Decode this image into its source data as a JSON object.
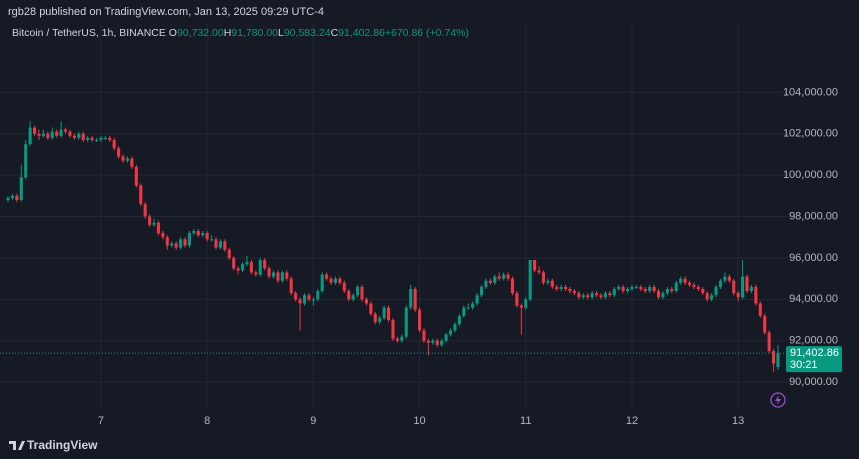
{
  "header": {
    "publisher": "rgb28 published on TradingView.com, Jan 13, 2025 09:29 UTC-4"
  },
  "footer": {
    "logo": "TradingView"
  },
  "chart_data": {
    "type": "candlestick",
    "title": "Bitcoin / TetherUS, 1h, BINANCE",
    "legend_values": [
      {
        "label": "O",
        "value": "90,732.00"
      },
      {
        "label": "H",
        "value": "91,780.00"
      },
      {
        "label": "L",
        "value": "90,583.24"
      },
      {
        "label": "C",
        "value": "91,402.86"
      }
    ],
    "change": "+670.86 (+0.74%)",
    "last_price_label": "91,402.86",
    "countdown": "30:21",
    "up_color": "#089981",
    "down_color": "#f23645",
    "grid": true,
    "ylim": [
      88750,
      107400
    ],
    "yticks": [
      {
        "value": 90000,
        "label": "90,000.00"
      },
      {
        "value": 92000,
        "label": "92,000.00"
      },
      {
        "value": 94000,
        "label": "94,000.00"
      },
      {
        "value": 96000,
        "label": "96,000.00"
      },
      {
        "value": 98000,
        "label": "98,000.00"
      },
      {
        "value": 100000,
        "label": "100,000.00"
      },
      {
        "value": 102000,
        "label": "102,000.00"
      },
      {
        "value": 104000,
        "label": "104,000.00"
      }
    ],
    "xlim": [
      0,
      174
    ],
    "xticks": [
      {
        "value": 21,
        "label": "7"
      },
      {
        "value": 45,
        "label": "8"
      },
      {
        "value": 69,
        "label": "9"
      },
      {
        "value": 93,
        "label": "10"
      },
      {
        "value": 117,
        "label": "11"
      },
      {
        "value": 141,
        "label": "12"
      },
      {
        "value": 165,
        "label": "13"
      }
    ],
    "ohlc": [
      [
        98800,
        99000,
        98700,
        98900
      ],
      [
        98900,
        99100,
        98800,
        99000
      ],
      [
        99000,
        99100,
        98700,
        98800
      ],
      [
        98800,
        100500,
        98700,
        99900
      ],
      [
        99900,
        101700,
        99800,
        101500
      ],
      [
        101500,
        102600,
        101400,
        102300
      ],
      [
        102300,
        102400,
        101900,
        102000
      ],
      [
        102000,
        102200,
        101700,
        101900
      ],
      [
        101900,
        102200,
        101800,
        102000
      ],
      [
        102000,
        102100,
        101700,
        101800
      ],
      [
        101800,
        102300,
        101700,
        102100
      ],
      [
        102100,
        102200,
        101800,
        101900
      ],
      [
        101900,
        102600,
        101800,
        102200
      ],
      [
        102200,
        102300,
        102000,
        102100
      ],
      [
        102100,
        102200,
        101800,
        101900
      ],
      [
        101900,
        102000,
        101700,
        101800
      ],
      [
        101800,
        102100,
        101700,
        102000
      ],
      [
        102000,
        102100,
        101600,
        101700
      ],
      [
        101700,
        101900,
        101600,
        101800
      ],
      [
        101800,
        101900,
        101600,
        101700
      ],
      [
        101700,
        101800,
        101600,
        101700
      ],
      [
        101700,
        101900,
        101600,
        101800
      ],
      [
        101800,
        101900,
        101700,
        101800
      ],
      [
        101800,
        101900,
        101600,
        101700
      ],
      [
        101700,
        101800,
        101200,
        101300
      ],
      [
        101300,
        101400,
        100800,
        100900
      ],
      [
        100900,
        101000,
        100600,
        100700
      ],
      [
        100700,
        100900,
        100600,
        100800
      ],
      [
        100800,
        100900,
        100300,
        100400
      ],
      [
        100400,
        100500,
        99400,
        99500
      ],
      [
        99500,
        99600,
        98500,
        98600
      ],
      [
        98600,
        98700,
        97900,
        98000
      ],
      [
        98000,
        98100,
        97500,
        97600
      ],
      [
        97600,
        97900,
        97500,
        97700
      ],
      [
        97700,
        97800,
        97100,
        97200
      ],
      [
        97200,
        97300,
        96900,
        97000
      ],
      [
        97000,
        97100,
        96400,
        96600
      ],
      [
        96600,
        96800,
        96500,
        96700
      ],
      [
        96700,
        96800,
        96400,
        96500
      ],
      [
        96500,
        97000,
        96400,
        96900
      ],
      [
        96900,
        97000,
        96500,
        96600
      ],
      [
        96600,
        97300,
        96500,
        97200
      ],
      [
        97200,
        97400,
        97100,
        97300
      ],
      [
        97300,
        97400,
        97000,
        97100
      ],
      [
        97100,
        97300,
        97000,
        97200
      ],
      [
        97200,
        97300,
        96800,
        96900
      ],
      [
        96900,
        97100,
        96800,
        96900
      ],
      [
        96900,
        97000,
        96400,
        96500
      ],
      [
        96500,
        96900,
        96400,
        96800
      ],
      [
        96800,
        96900,
        96300,
        96400
      ],
      [
        96400,
        96500,
        95900,
        96000
      ],
      [
        96000,
        96100,
        95400,
        95500
      ],
      [
        95500,
        95600,
        95200,
        95400
      ],
      [
        95400,
        95800,
        95300,
        95700
      ],
      [
        95700,
        96100,
        95600,
        95800
      ],
      [
        95800,
        95900,
        95200,
        95300
      ],
      [
        95300,
        95400,
        95100,
        95200
      ],
      [
        95200,
        96000,
        95100,
        95900
      ],
      [
        95900,
        96000,
        95400,
        95500
      ],
      [
        95500,
        95600,
        95000,
        95100
      ],
      [
        95100,
        95400,
        95000,
        95300
      ],
      [
        95300,
        95400,
        94800,
        94900
      ],
      [
        94900,
        95400,
        94800,
        95300
      ],
      [
        95300,
        95400,
        94900,
        95000
      ],
      [
        95000,
        95100,
        94200,
        94300
      ],
      [
        94300,
        94400,
        93900,
        94000
      ],
      [
        94000,
        94100,
        92500,
        93800
      ],
      [
        93800,
        94300,
        93700,
        94200
      ],
      [
        94200,
        94300,
        93900,
        94000
      ],
      [
        94000,
        94100,
        93700,
        94000
      ],
      [
        94000,
        94500,
        93900,
        94400
      ],
      [
        94400,
        95300,
        94300,
        95200
      ],
      [
        95200,
        95300,
        94900,
        95000
      ],
      [
        95000,
        95100,
        94700,
        94800
      ],
      [
        94800,
        95100,
        94700,
        95000
      ],
      [
        95000,
        95100,
        94700,
        94800
      ],
      [
        94800,
        94900,
        94300,
        94400
      ],
      [
        94400,
        94500,
        93900,
        94000
      ],
      [
        94000,
        94300,
        93900,
        94200
      ],
      [
        94200,
        94700,
        94100,
        94600
      ],
      [
        94600,
        94700,
        93900,
        94000
      ],
      [
        94000,
        94100,
        93700,
        93800
      ],
      [
        93800,
        93900,
        93200,
        93300
      ],
      [
        93300,
        93400,
        92800,
        92900
      ],
      [
        92900,
        93200,
        92800,
        93100
      ],
      [
        93100,
        93700,
        93000,
        93600
      ],
      [
        93600,
        93700,
        92900,
        93000
      ],
      [
        93000,
        93100,
        92000,
        92100
      ],
      [
        92100,
        92200,
        91900,
        92000
      ],
      [
        92000,
        92300,
        91900,
        92200
      ],
      [
        92200,
        93700,
        92100,
        93600
      ],
      [
        93600,
        94700,
        93500,
        94500
      ],
      [
        94500,
        94600,
        93400,
        93500
      ],
      [
        93500,
        93600,
        92400,
        92500
      ],
      [
        92500,
        92600,
        91900,
        92000
      ],
      [
        92000,
        92100,
        91300,
        91900
      ],
      [
        91900,
        92100,
        91800,
        92000
      ],
      [
        92000,
        92100,
        91700,
        91800
      ],
      [
        91800,
        92100,
        91700,
        92000
      ],
      [
        92000,
        92400,
        91900,
        92300
      ],
      [
        92300,
        92600,
        92200,
        92500
      ],
      [
        92500,
        92900,
        92400,
        92800
      ],
      [
        92800,
        93300,
        92700,
        93200
      ],
      [
        93200,
        93700,
        93100,
        93600
      ],
      [
        93600,
        93800,
        93500,
        93600
      ],
      [
        93600,
        93900,
        93500,
        93800
      ],
      [
        93800,
        94300,
        93700,
        94200
      ],
      [
        94200,
        94700,
        94100,
        94600
      ],
      [
        94600,
        95000,
        94500,
        94900
      ],
      [
        94900,
        95000,
        94700,
        94800
      ],
      [
        94800,
        95200,
        94700,
        95100
      ],
      [
        95100,
        95300,
        94900,
        95000
      ],
      [
        95000,
        95300,
        94900,
        95200
      ],
      [
        95200,
        95300,
        94900,
        95000
      ],
      [
        95000,
        95100,
        94200,
        94300
      ],
      [
        94300,
        94400,
        93600,
        93700
      ],
      [
        93700,
        93800,
        92300,
        93600
      ],
      [
        93600,
        94100,
        93500,
        94000
      ],
      [
        94000,
        95900,
        93900,
        95900
      ],
      [
        95900,
        95900,
        95300,
        95400
      ],
      [
        95400,
        95600,
        95200,
        95300
      ],
      [
        95300,
        95400,
        94700,
        94800
      ],
      [
        94800,
        95000,
        94700,
        94900
      ],
      [
        94900,
        95000,
        94500,
        94600
      ],
      [
        94600,
        94700,
        94400,
        94500
      ],
      [
        94500,
        94700,
        94400,
        94600
      ],
      [
        94600,
        94700,
        94400,
        94500
      ],
      [
        94500,
        94600,
        94300,
        94400
      ],
      [
        94400,
        94500,
        94200,
        94300
      ],
      [
        94300,
        94400,
        94000,
        94100
      ],
      [
        94100,
        94300,
        94000,
        94200
      ],
      [
        94200,
        94300,
        94000,
        94100
      ],
      [
        94100,
        94400,
        94000,
        94300
      ],
      [
        94300,
        94400,
        94100,
        94200
      ],
      [
        94200,
        94300,
        94000,
        94100
      ],
      [
        94100,
        94400,
        94000,
        94300
      ],
      [
        94300,
        94400,
        94100,
        94200
      ],
      [
        94200,
        94600,
        94100,
        94500
      ],
      [
        94500,
        94700,
        94400,
        94600
      ],
      [
        94600,
        94700,
        94300,
        94400
      ],
      [
        94400,
        94600,
        94300,
        94500
      ],
      [
        94500,
        94700,
        94400,
        94600
      ],
      [
        94600,
        94700,
        94500,
        94600
      ],
      [
        94600,
        94700,
        94400,
        94500
      ],
      [
        94500,
        94600,
        94300,
        94400
      ],
      [
        94400,
        94700,
        94300,
        94600
      ],
      [
        94600,
        94700,
        94300,
        94400
      ],
      [
        94400,
        94500,
        94000,
        94100
      ],
      [
        94100,
        94400,
        94000,
        94300
      ],
      [
        94300,
        94600,
        94200,
        94500
      ],
      [
        94500,
        94600,
        94300,
        94400
      ],
      [
        94400,
        94900,
        94300,
        94800
      ],
      [
        94800,
        95100,
        94700,
        95000
      ],
      [
        95000,
        95100,
        94700,
        94800
      ],
      [
        94800,
        94900,
        94600,
        94700
      ],
      [
        94700,
        94800,
        94500,
        94600
      ],
      [
        94600,
        94700,
        94400,
        94500
      ],
      [
        94500,
        94600,
        94200,
        94300
      ],
      [
        94300,
        94400,
        93900,
        94000
      ],
      [
        94000,
        94300,
        93900,
        94200
      ],
      [
        94200,
        94700,
        94100,
        94600
      ],
      [
        94600,
        95000,
        94500,
        94900
      ],
      [
        94900,
        95300,
        94800,
        95100
      ],
      [
        95100,
        95200,
        94800,
        94900
      ],
      [
        94900,
        95000,
        94200,
        94300
      ],
      [
        94300,
        94400,
        93900,
        94100
      ],
      [
        94100,
        95900,
        94000,
        95100
      ],
      [
        95100,
        95200,
        94300,
        94400
      ],
      [
        94400,
        94700,
        94300,
        94600
      ],
      [
        94600,
        94700,
        93700,
        93800
      ],
      [
        93800,
        93900,
        93100,
        93200
      ],
      [
        93200,
        93300,
        92300,
        92400
      ],
      [
        92400,
        92500,
        91400,
        91500
      ],
      [
        91500,
        91600,
        90500,
        90900
      ],
      [
        90732,
        91780,
        90583.24,
        91402.86
      ]
    ]
  }
}
